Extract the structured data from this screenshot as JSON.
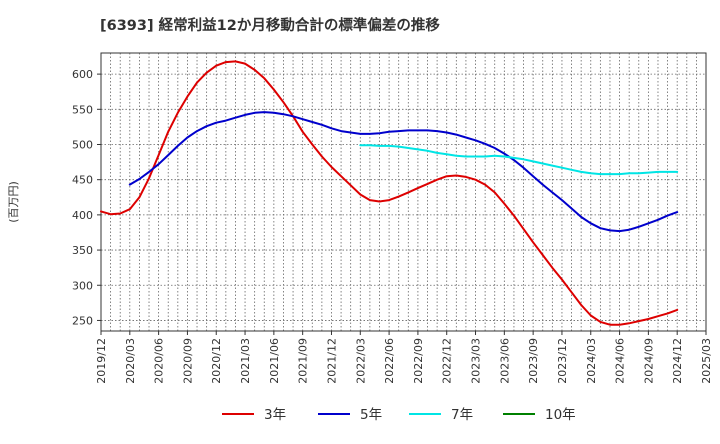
{
  "chart_data": {
    "type": "line",
    "title": "[6393]  経常利益12か月移動合計の標準偏差の推移",
    "ylabel": "(百万円)",
    "xlabel": "",
    "ylim": [
      235,
      630
    ],
    "y_ticks": [
      250,
      300,
      350,
      400,
      450,
      500,
      550,
      600
    ],
    "x_ticks": [
      "2019/12",
      "2020/03",
      "2020/06",
      "2020/09",
      "2020/12",
      "2021/03",
      "2021/06",
      "2021/09",
      "2021/12",
      "2022/03",
      "2022/06",
      "2022/09",
      "2022/12",
      "2023/03",
      "2023/06",
      "2023/09",
      "2023/12",
      "2024/03",
      "2024/06",
      "2024/09",
      "2024/12",
      "2025/03"
    ],
    "grid": true,
    "legend_position": "bottom",
    "series": [
      {
        "name": "3年",
        "color": "#dd0000",
        "points": [
          [
            "2019/12",
            405
          ],
          [
            "2020/01",
            401
          ],
          [
            "2020/02",
            402
          ],
          [
            "2020/03",
            408
          ],
          [
            "2020/04",
            425
          ],
          [
            "2020/05",
            452
          ],
          [
            "2020/06",
            485
          ],
          [
            "2020/07",
            518
          ],
          [
            "2020/08",
            545
          ],
          [
            "2020/09",
            568
          ],
          [
            "2020/10",
            588
          ],
          [
            "2020/11",
            602
          ],
          [
            "2020/12",
            612
          ],
          [
            "2021/01",
            617
          ],
          [
            "2021/02",
            618
          ],
          [
            "2021/03",
            615
          ],
          [
            "2021/04",
            606
          ],
          [
            "2021/05",
            594
          ],
          [
            "2021/06",
            578
          ],
          [
            "2021/07",
            560
          ],
          [
            "2021/08",
            540
          ],
          [
            "2021/09",
            518
          ],
          [
            "2021/10",
            500
          ],
          [
            "2021/11",
            483
          ],
          [
            "2021/12",
            468
          ],
          [
            "2022/01",
            455
          ],
          [
            "2022/02",
            442
          ],
          [
            "2022/03",
            429
          ],
          [
            "2022/04",
            421
          ],
          [
            "2022/05",
            419
          ],
          [
            "2022/06",
            421
          ],
          [
            "2022/07",
            426
          ],
          [
            "2022/08",
            432
          ],
          [
            "2022/09",
            438
          ],
          [
            "2022/10",
            444
          ],
          [
            "2022/11",
            450
          ],
          [
            "2022/12",
            455
          ],
          [
            "2023/01",
            456
          ],
          [
            "2023/02",
            454
          ],
          [
            "2023/03",
            450
          ],
          [
            "2023/04",
            443
          ],
          [
            "2023/05",
            432
          ],
          [
            "2023/06",
            416
          ],
          [
            "2023/07",
            399
          ],
          [
            "2023/08",
            380
          ],
          [
            "2023/09",
            361
          ],
          [
            "2023/10",
            343
          ],
          [
            "2023/11",
            325
          ],
          [
            "2023/12",
            308
          ],
          [
            "2024/01",
            290
          ],
          [
            "2024/02",
            272
          ],
          [
            "2024/03",
            257
          ],
          [
            "2024/04",
            248
          ],
          [
            "2024/05",
            244
          ],
          [
            "2024/06",
            244
          ],
          [
            "2024/07",
            246
          ],
          [
            "2024/08",
            249
          ],
          [
            "2024/09",
            252
          ],
          [
            "2024/10",
            256
          ],
          [
            "2024/11",
            260
          ],
          [
            "2024/12",
            265
          ]
        ]
      },
      {
        "name": "5年",
        "color": "#0000cc",
        "points": [
          [
            "2020/03",
            443
          ],
          [
            "2020/04",
            451
          ],
          [
            "2020/05",
            461
          ],
          [
            "2020/06",
            472
          ],
          [
            "2020/07",
            485
          ],
          [
            "2020/08",
            498
          ],
          [
            "2020/09",
            510
          ],
          [
            "2020/10",
            519
          ],
          [
            "2020/11",
            526
          ],
          [
            "2020/12",
            531
          ],
          [
            "2021/01",
            534
          ],
          [
            "2021/02",
            538
          ],
          [
            "2021/03",
            542
          ],
          [
            "2021/04",
            545
          ],
          [
            "2021/05",
            546
          ],
          [
            "2021/06",
            545
          ],
          [
            "2021/07",
            543
          ],
          [
            "2021/08",
            540
          ],
          [
            "2021/09",
            536
          ],
          [
            "2021/10",
            532
          ],
          [
            "2021/11",
            528
          ],
          [
            "2021/12",
            523
          ],
          [
            "2022/01",
            519
          ],
          [
            "2022/02",
            517
          ],
          [
            "2022/03",
            515
          ],
          [
            "2022/04",
            515
          ],
          [
            "2022/05",
            516
          ],
          [
            "2022/06",
            518
          ],
          [
            "2022/07",
            519
          ],
          [
            "2022/08",
            520
          ],
          [
            "2022/09",
            520
          ],
          [
            "2022/10",
            520
          ],
          [
            "2022/11",
            519
          ],
          [
            "2022/12",
            517
          ],
          [
            "2023/01",
            514
          ],
          [
            "2023/02",
            510
          ],
          [
            "2023/03",
            506
          ],
          [
            "2023/04",
            501
          ],
          [
            "2023/05",
            495
          ],
          [
            "2023/06",
            487
          ],
          [
            "2023/07",
            478
          ],
          [
            "2023/08",
            467
          ],
          [
            "2023/09",
            455
          ],
          [
            "2023/10",
            443
          ],
          [
            "2023/11",
            432
          ],
          [
            "2023/12",
            421
          ],
          [
            "2024/01",
            409
          ],
          [
            "2024/02",
            397
          ],
          [
            "2024/03",
            388
          ],
          [
            "2024/04",
            381
          ],
          [
            "2024/05",
            378
          ],
          [
            "2024/06",
            377
          ],
          [
            "2024/07",
            379
          ],
          [
            "2024/08",
            383
          ],
          [
            "2024/09",
            388
          ],
          [
            "2024/10",
            393
          ],
          [
            "2024/11",
            399
          ],
          [
            "2024/12",
            404
          ]
        ]
      },
      {
        "name": "7年",
        "color": "#00e5e5",
        "points": [
          [
            "2022/03",
            499
          ],
          [
            "2022/04",
            499
          ],
          [
            "2022/05",
            498
          ],
          [
            "2022/06",
            498
          ],
          [
            "2022/07",
            497
          ],
          [
            "2022/08",
            495
          ],
          [
            "2022/09",
            493
          ],
          [
            "2022/10",
            491
          ],
          [
            "2022/11",
            488
          ],
          [
            "2022/12",
            486
          ],
          [
            "2023/01",
            484
          ],
          [
            "2023/02",
            483
          ],
          [
            "2023/03",
            483
          ],
          [
            "2023/04",
            483
          ],
          [
            "2023/05",
            484
          ],
          [
            "2023/06",
            483
          ],
          [
            "2023/07",
            481
          ],
          [
            "2023/08",
            479
          ],
          [
            "2023/09",
            476
          ],
          [
            "2023/10",
            473
          ],
          [
            "2023/11",
            470
          ],
          [
            "2023/12",
            467
          ],
          [
            "2024/01",
            464
          ],
          [
            "2024/02",
            461
          ],
          [
            "2024/03",
            459
          ],
          [
            "2024/04",
            458
          ],
          [
            "2024/05",
            458
          ],
          [
            "2024/06",
            458
          ],
          [
            "2024/07",
            459
          ],
          [
            "2024/08",
            459
          ],
          [
            "2024/09",
            460
          ],
          [
            "2024/10",
            461
          ],
          [
            "2024/11",
            461
          ],
          [
            "2024/12",
            461
          ]
        ]
      },
      {
        "name": "10年",
        "color": "#008000",
        "points": []
      }
    ]
  }
}
